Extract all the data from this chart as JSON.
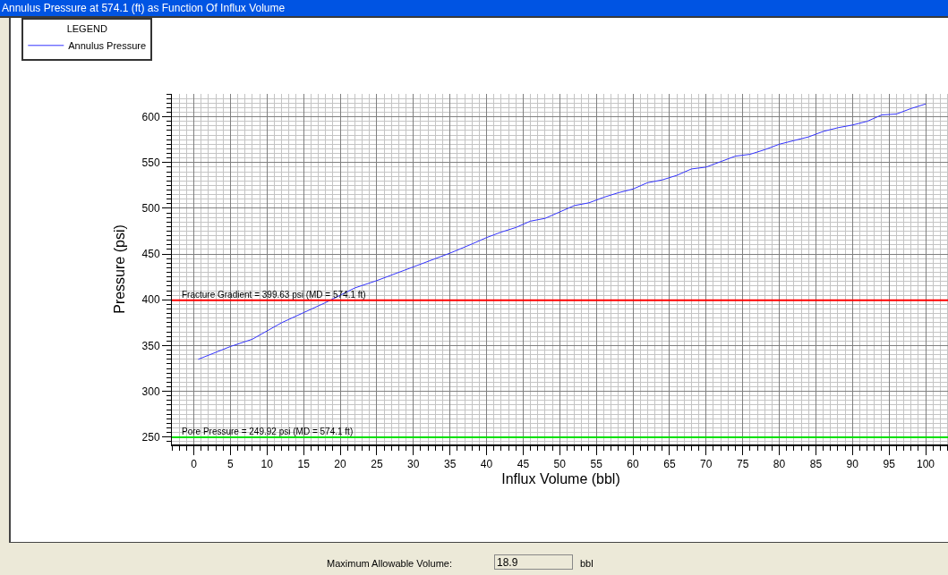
{
  "chart_data": {
    "type": "line",
    "title": "Annulus Pressure at 574.1 (ft) as Function Of Influx Volume",
    "xlabel": "Influx Volume (bbl)",
    "ylabel": "Pressure (psi)",
    "legend_title": "LEGEND",
    "legend": "top left",
    "grid": true,
    "marker": "none",
    "line_style": "solid",
    "xlim": [
      -3,
      103.3
    ],
    "xticks": [
      0,
      5,
      10,
      15,
      20,
      25,
      30,
      35,
      40,
      45,
      50,
      55,
      60,
      65,
      70,
      75,
      80,
      85,
      90,
      95,
      100
    ],
    "ylim": [
      242,
      625
    ],
    "yticks": [
      250,
      300,
      350,
      400,
      450,
      500,
      550,
      600
    ],
    "x": [
      0.6,
      5,
      8,
      10,
      12,
      15,
      18,
      20,
      22,
      25,
      30,
      33,
      35,
      36.5,
      38,
      40,
      42,
      44,
      46,
      48,
      50,
      52,
      54,
      56,
      58,
      60,
      62,
      64,
      66,
      68,
      70,
      72,
      74,
      76,
      78,
      80,
      82,
      84,
      86,
      88,
      90,
      92,
      94,
      96,
      98,
      100
    ],
    "series": [
      {
        "name": "Annulus Pressure",
        "color": "#3333ff",
        "values": [
          335,
          349,
          357,
          366,
          375,
          386,
          397,
          405,
          413,
          421,
          436,
          445,
          451,
          456,
          461,
          468,
          474,
          479,
          486,
          489,
          496,
          503,
          506,
          512,
          517,
          521,
          528,
          531,
          536,
          543,
          545,
          551,
          557,
          559,
          564,
          570,
          574,
          578,
          584,
          588,
          591,
          595,
          602,
          603,
          609,
          614
        ]
      }
    ],
    "ref_lines": [
      {
        "axis": "y",
        "value": 399.63,
        "label": "Fracture Gradient = 399.63 psi (MD = 574.1 ft)",
        "color": "#ff0000",
        "line_style": "solid"
      },
      {
        "axis": "y",
        "value": 249.92,
        "label": "Pore Pressure = 249.92 psi (MD = 574.1 ft)",
        "color": "#00e000",
        "line_style": "solid"
      }
    ],
    "annotations": [
      "Maximum Allowable Volume:",
      "18.9",
      "bbl"
    ]
  }
}
